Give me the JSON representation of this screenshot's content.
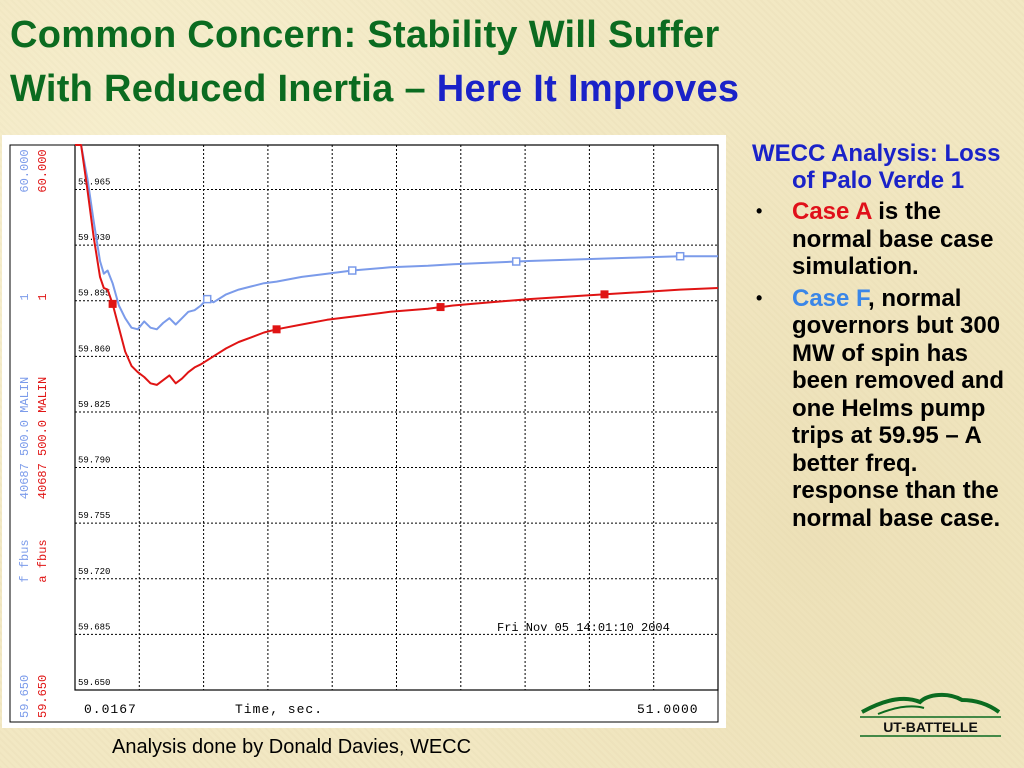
{
  "title": {
    "line1": "Common Concern: Stability Will Suffer",
    "line2": "With Reduced Inertia –",
    "highlight": "Here It Improves"
  },
  "sidebar": {
    "heading": "WECC Analysis: Loss of Palo Verde 1",
    "bullets": [
      {
        "lead": "Case A",
        "text": " is the normal base case simulation."
      },
      {
        "lead": "Case F",
        "text": ", normal governors but 300 MW of spin has been removed and one Helms pump trips at 59.95 – A better freq. response than the normal base case."
      }
    ],
    "bullet_glyph": "•"
  },
  "credit": "Analysis done by Donald Davies, WECC",
  "logo_text": "UT-BATTELLE",
  "chart_data": {
    "type": "line",
    "timestamp": "Fri Nov 05 14:01:10 2004",
    "x_start_label": "0.0167",
    "x_label": "Time, sec.",
    "x_end_label": "51.0000",
    "xlim": [
      0.0167,
      51.0
    ],
    "ylim": [
      59.65,
      59.993
    ],
    "ytick_labels": [
      "59.965",
      "59.930",
      "59.895",
      "59.860",
      "59.825",
      "59.790",
      "59.755",
      "59.720",
      "59.685",
      "59.650"
    ],
    "yticks": [
      59.965,
      59.93,
      59.895,
      59.86,
      59.825,
      59.79,
      59.755,
      59.72,
      59.685,
      59.65
    ],
    "legend_blue": [
      "60.000",
      "1",
      "40687 500.0 MALIN",
      "f fbus",
      "59.650"
    ],
    "legend_red": [
      "60.000",
      "1",
      "40687 500.0 MALIN",
      "a fbus",
      "59.650"
    ],
    "colors": {
      "blue": "#7b9bea",
      "red": "#e01414",
      "grid": "#000000"
    },
    "series": [
      {
        "color": "blue",
        "marker": "square-open",
        "x": [
          0.0167,
          0.5,
          1.0,
          1.5,
          2.0,
          2.3,
          2.6,
          3.0,
          3.5,
          4.0,
          4.5,
          5.0,
          5.5,
          6.0,
          6.5,
          7.0,
          7.5,
          8.0,
          8.5,
          9.0,
          9.5,
          10.0,
          10.5,
          11.0,
          12.0,
          13.0,
          14.0,
          15.0,
          16.0,
          18.0,
          20.0,
          22.0,
          25.0,
          28.0,
          30.0,
          33.0,
          36.0,
          40.0,
          44.0,
          48.0,
          51.0
        ],
        "y": [
          59.993,
          59.993,
          59.972,
          59.945,
          59.92,
          59.912,
          59.914,
          59.906,
          59.892,
          59.884,
          59.878,
          59.877,
          59.882,
          59.878,
          59.877,
          59.881,
          59.884,
          59.88,
          59.884,
          59.888,
          59.889,
          59.892,
          59.896,
          59.894,
          59.899,
          59.902,
          59.904,
          59.906,
          59.907,
          59.91,
          59.912,
          59.914,
          59.916,
          59.917,
          59.918,
          59.919,
          59.92,
          59.921,
          59.922,
          59.923,
          59.923
        ],
        "markers_x": [
          10.5,
          22.0,
          35.0,
          48.0
        ]
      },
      {
        "color": "red",
        "marker": "square-filled",
        "x": [
          0.0167,
          0.5,
          1.0,
          1.5,
          2.0,
          2.3,
          2.6,
          3.0,
          3.5,
          4.0,
          4.5,
          5.0,
          5.5,
          6.0,
          6.5,
          7.0,
          7.5,
          8.0,
          8.5,
          9.0,
          9.5,
          10.0,
          11.0,
          12.0,
          13.0,
          14.0,
          15.0,
          16.0,
          18.0,
          20.0,
          22.0,
          25.0,
          28.0,
          30.0,
          33.0,
          36.0,
          40.0,
          44.0,
          48.0,
          51.0
        ],
        "y": [
          59.993,
          59.993,
          59.965,
          59.935,
          59.91,
          59.903,
          59.902,
          59.893,
          59.878,
          59.863,
          59.854,
          59.85,
          59.847,
          59.843,
          59.842,
          59.845,
          59.848,
          59.843,
          59.846,
          59.85,
          59.853,
          59.855,
          59.86,
          59.865,
          59.869,
          59.872,
          59.875,
          59.877,
          59.88,
          59.883,
          59.885,
          59.888,
          59.89,
          59.892,
          59.894,
          59.896,
          59.898,
          59.9,
          59.902,
          59.903
        ],
        "markers_x": [
          3.0,
          16.0,
          29.0,
          42.0
        ]
      }
    ]
  }
}
